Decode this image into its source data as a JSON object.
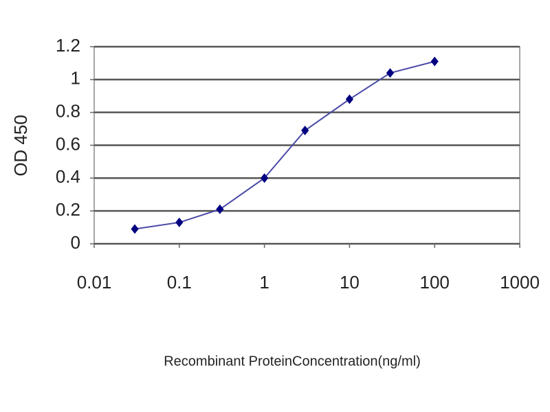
{
  "chart_data": {
    "type": "line",
    "x_label": "Recombinant ProteinConcentration(ng/ml)",
    "y_label": "OD 450",
    "x": [
      0.03,
      0.1,
      0.3,
      1,
      3,
      10,
      30,
      100
    ],
    "series": [
      {
        "color": "#000080",
        "line_color": "#4a4aa8",
        "values": [
          0.09,
          0.13,
          0.21,
          0.4,
          0.69,
          0.88,
          1.04,
          1.11
        ]
      }
    ],
    "xscale": "log",
    "xlim": [
      0.01,
      1000
    ],
    "xticks": [
      0.01,
      0.1,
      1,
      10,
      100,
      1000
    ],
    "ylim": [
      0,
      1.2
    ],
    "yticks": [
      0,
      0.2,
      0.4,
      0.6,
      0.8,
      1,
      1.2
    ],
    "grid": "y"
  }
}
